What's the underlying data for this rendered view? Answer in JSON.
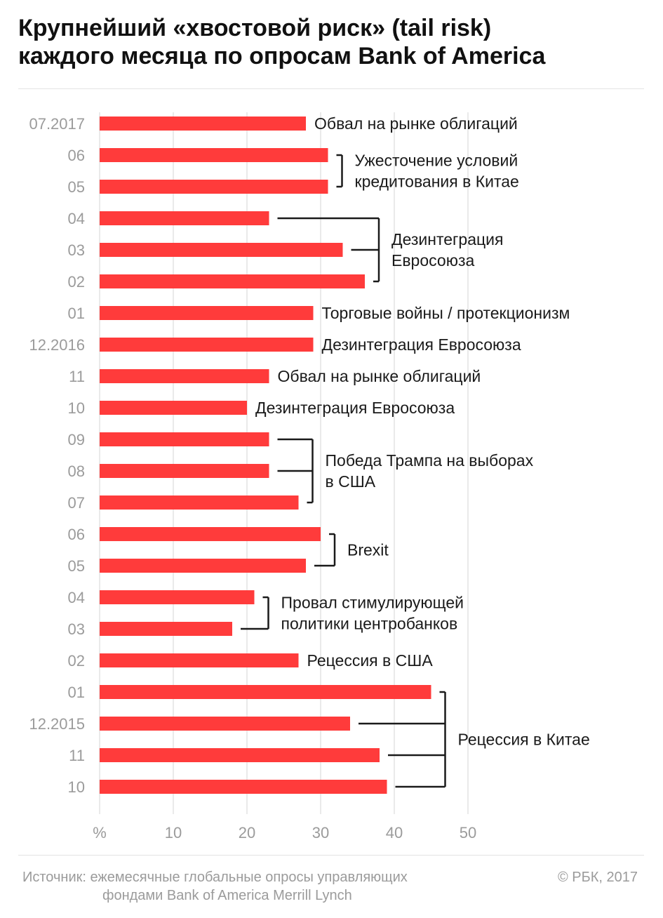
{
  "chart_data": {
    "type": "bar",
    "orientation": "horizontal",
    "title_lines": [
      "Крупнейший «хвостовой риск» (tail risk)",
      "каждого месяца по опросам Bank of America"
    ],
    "categories": [
      "07.2017",
      "06",
      "05",
      "04",
      "03",
      "02",
      "01",
      "12.2016",
      "11",
      "10",
      "09",
      "08",
      "07",
      "06",
      "05",
      "04",
      "03",
      "02",
      "01",
      "12.2015",
      "11",
      "10"
    ],
    "values": [
      28,
      31,
      31,
      23,
      33,
      36,
      29,
      29,
      23,
      20,
      23,
      23,
      27,
      30,
      28,
      21,
      18,
      27,
      45,
      34,
      38,
      39
    ],
    "unit_label": "%",
    "x_ticks": [
      "10",
      "20",
      "30",
      "40",
      "50"
    ],
    "xlim": [
      0,
      50
    ],
    "grid": true,
    "bar_color": "#ff3b3b",
    "annotations": [
      {
        "lines": [
          "Обвал на рынке облигаций"
        ],
        "rows": [
          0
        ]
      },
      {
        "lines": [
          "Ужесточение условий",
          "кредитования в Китае"
        ],
        "rows": [
          1,
          2
        ]
      },
      {
        "lines": [
          "Дезинтеграция",
          "Евросоюза"
        ],
        "rows": [
          3,
          4,
          5
        ]
      },
      {
        "lines": [
          "Торговые войны / протекционизм"
        ],
        "rows": [
          6
        ]
      },
      {
        "lines": [
          "Дезинтеграция Евросоюза"
        ],
        "rows": [
          7
        ]
      },
      {
        "lines": [
          "Обвал на рынке облигаций"
        ],
        "rows": [
          8
        ]
      },
      {
        "lines": [
          "Дезинтеграция Евросоюза"
        ],
        "rows": [
          9
        ]
      },
      {
        "lines": [
          "Победа Трампа на выборах",
          "в США"
        ],
        "rows": [
          10,
          11,
          12
        ]
      },
      {
        "lines": [
          "Brexit"
        ],
        "rows": [
          13,
          14
        ]
      },
      {
        "lines": [
          "Провал стимулирующей",
          "политики центробанков"
        ],
        "rows": [
          15,
          16
        ]
      },
      {
        "lines": [
          "Рецессия в США"
        ],
        "rows": [
          17
        ]
      },
      {
        "lines": [
          "Рецессия в Китае"
        ],
        "rows": [
          18,
          19,
          20,
          21
        ]
      }
    ]
  },
  "footer": {
    "source_line1": "Источник: ежемесячные глобальные опросы управляющих",
    "source_line2": "фондами Bank of America Merrill Lynch",
    "copyright": "© РБК, 2017"
  }
}
